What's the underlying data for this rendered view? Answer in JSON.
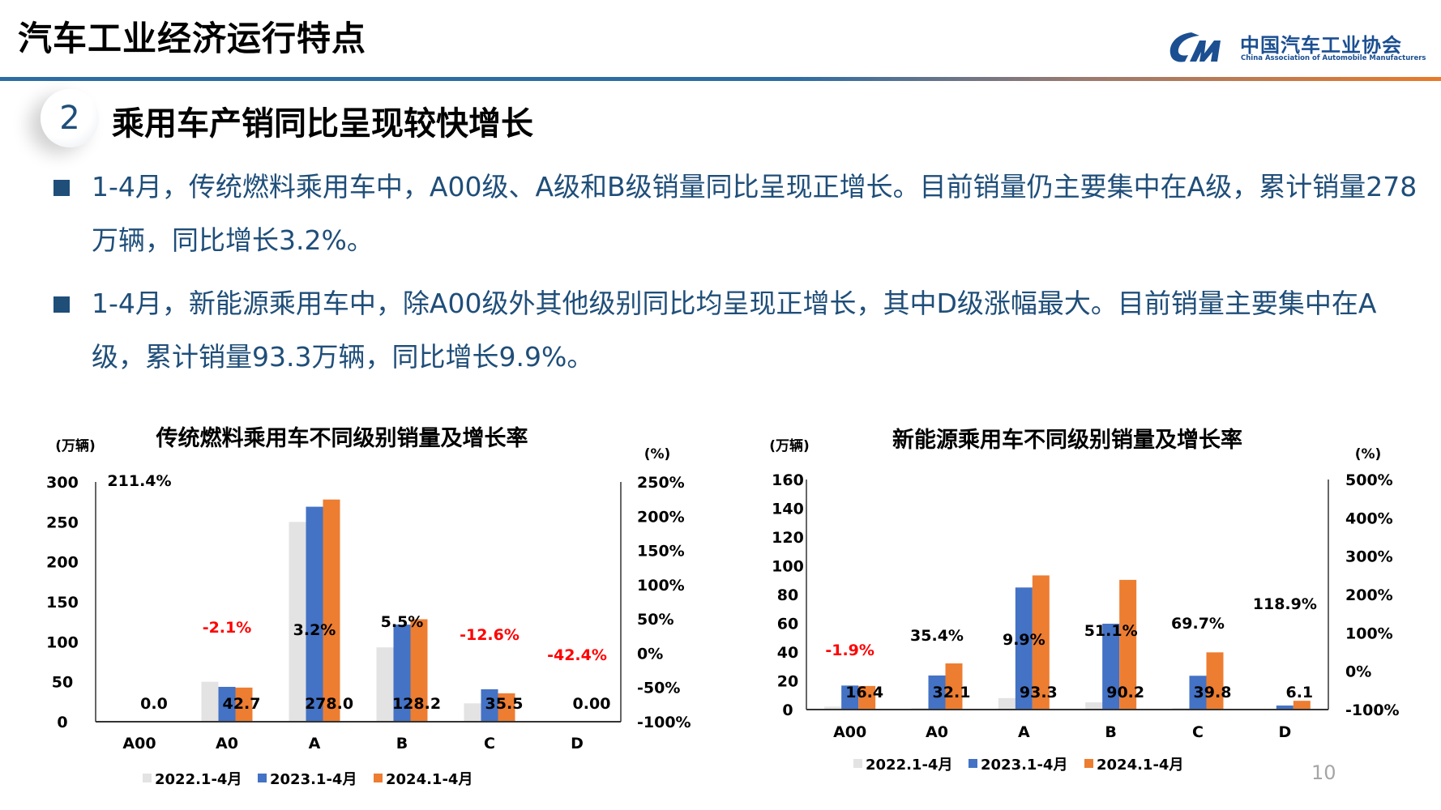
{
  "header": {
    "title": "汽车工业经济运行特点",
    "logo_cn": "中国汽车工业协会",
    "logo_en": "China Association of Automobile Manufacturers"
  },
  "section": {
    "number": "2",
    "title": "乘用车产销同比呈现较快增长"
  },
  "bullets": [
    "1-4月，传统燃料乘用车中，A00级、A级和B级销量同比呈现正增长。目前销量仍主要集中在A级，累计销量278万辆，同比增长3.2%。",
    "1-4月，新能源乘用车中，除A00级外其他级别同比均呈现正增长，其中D级涨幅最大。目前销量主要集中在A级，累计销量93.3万辆，同比增长9.9%。"
  ],
  "page_number": "10",
  "colors": {
    "s2022": "#e3e3e3",
    "s2023": "#4472c4",
    "s2024": "#ed7d31",
    "negative": "#ff0000",
    "text_blue": "#1f4e79"
  },
  "chart_data": [
    {
      "type": "bar",
      "title": "传统燃料乘用车不同级别销量及增长率",
      "ylabel": "(万辆)",
      "y2label": "(%)",
      "ylim": [
        0,
        300
      ],
      "yticks": [
        "0",
        "50",
        "100",
        "150",
        "200",
        "250",
        "300"
      ],
      "y2lim": [
        -100,
        250
      ],
      "y2ticks": [
        "-100%",
        "-50%",
        "0%",
        "50%",
        "100%",
        "150%",
        "200%",
        "250%"
      ],
      "categories": [
        "A00",
        "A0",
        "A",
        "B",
        "C",
        "D"
      ],
      "series": [
        {
          "name": "2022.1-4月",
          "values": [
            0,
            50,
            250,
            93,
            23,
            0
          ]
        },
        {
          "name": "2023.1-4月",
          "values": [
            0,
            43.6,
            269,
            121.5,
            40.6,
            0
          ]
        },
        {
          "name": "2024.1-4月",
          "values": [
            0,
            42.7,
            278.0,
            128.2,
            35.5,
            0
          ]
        }
      ],
      "value_labels": [
        "0.0",
        "42.7",
        "278.0",
        "128.2",
        "35.5",
        "0.00"
      ],
      "growth_labels": [
        "211.4%",
        "-2.1%",
        "3.2%",
        "5.5%",
        "-12.6%",
        "-42.4%"
      ],
      "growth_values": [
        211.4,
        -2.1,
        3.2,
        5.5,
        -12.6,
        -42.4
      ],
      "legend": "bottom"
    },
    {
      "type": "bar",
      "title": "新能源乘用车不同级别销量及增长率",
      "ylabel": "(万辆)",
      "y2label": "(%)",
      "ylim": [
        0,
        160
      ],
      "yticks": [
        "0",
        "20",
        "40",
        "60",
        "80",
        "100",
        "120",
        "140",
        "160"
      ],
      "y2lim": [
        -100,
        500
      ],
      "y2ticks": [
        "-100%",
        "0%",
        "100%",
        "200%",
        "300%",
        "400%",
        "500%"
      ],
      "categories": [
        "A00",
        "A0",
        "A",
        "B",
        "C",
        "D"
      ],
      "series": [
        {
          "name": "2022.1-4月",
          "values": [
            2,
            1,
            8,
            5,
            1,
            0
          ]
        },
        {
          "name": "2023.1-4月",
          "values": [
            16.7,
            23.7,
            84.9,
            59.7,
            23.5,
            2.8
          ]
        },
        {
          "name": "2024.1-4月",
          "values": [
            16.4,
            32.1,
            93.3,
            90.2,
            39.8,
            6.1
          ]
        }
      ],
      "value_labels": [
        "16.4",
        "32.1",
        "93.3",
        "90.2",
        "39.8",
        "6.1"
      ],
      "growth_labels": [
        "-1.9%",
        "35.4%",
        "9.9%",
        "51.1%",
        "69.7%",
        "118.9%"
      ],
      "growth_values": [
        -1.9,
        35.4,
        9.9,
        51.1,
        69.7,
        118.9
      ],
      "legend": "bottom"
    }
  ]
}
